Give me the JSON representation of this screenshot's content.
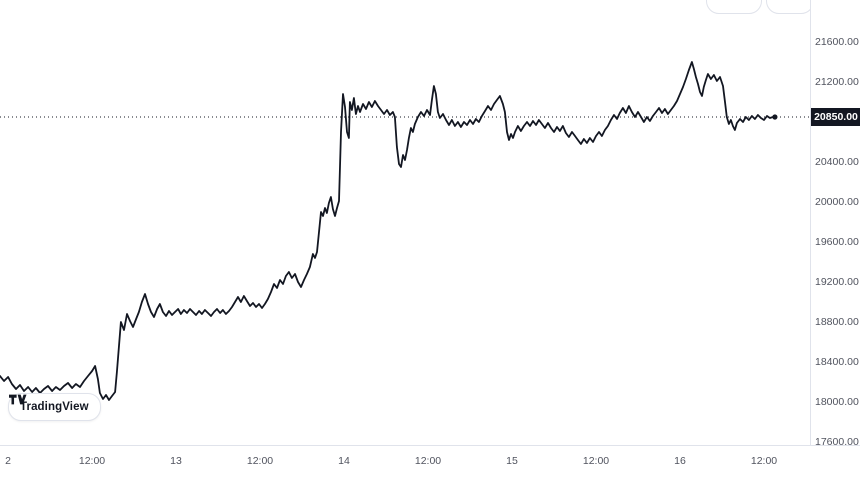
{
  "watermark": {
    "label": "TradingView"
  },
  "chart_data": {
    "type": "line",
    "title": "",
    "line_color": "#131722",
    "background": "#ffffff",
    "grid": "off",
    "legend": "none",
    "x_axis": {
      "xlim": [
        11.952,
        16.774
      ],
      "ticks": [
        {
          "t": 12.0,
          "label": "2"
        },
        {
          "t": 12.5,
          "label": "12:00"
        },
        {
          "t": 13.0,
          "label": "13"
        },
        {
          "t": 13.5,
          "label": "12:00"
        },
        {
          "t": 14.0,
          "label": "14"
        },
        {
          "t": 14.5,
          "label": "12:00"
        },
        {
          "t": 15.0,
          "label": "15"
        },
        {
          "t": 15.5,
          "label": "12:00"
        },
        {
          "t": 16.0,
          "label": "16"
        },
        {
          "t": 16.5,
          "label": "12:00"
        }
      ]
    },
    "y_axis": {
      "side": "right",
      "ylim": [
        17570,
        22020
      ],
      "ticks": [
        {
          "value": 21600,
          "label": "21600.00"
        },
        {
          "value": 21200,
          "label": "21200.00"
        },
        {
          "value": 20400,
          "label": "20400.00"
        },
        {
          "value": 20000,
          "label": "20000.00"
        },
        {
          "value": 19600,
          "label": "19600.00"
        },
        {
          "value": 19200,
          "label": "19200.00"
        },
        {
          "value": 18800,
          "label": "18800.00"
        },
        {
          "value": 18400,
          "label": "18400.00"
        },
        {
          "value": 18000,
          "label": "18000.00"
        },
        {
          "value": 17600,
          "label": "17600.00"
        }
      ]
    },
    "last_price": {
      "value": 20850,
      "label": "20850.00",
      "line_style": "dotted",
      "box_bg": "#131722",
      "box_fg": "#ffffff"
    },
    "series": [
      {
        "name": "price",
        "points": [
          [
            11.952,
            18260
          ],
          [
            11.976,
            18210
          ],
          [
            12.0,
            18250
          ],
          [
            12.023,
            18180
          ],
          [
            12.047,
            18130
          ],
          [
            12.071,
            18170
          ],
          [
            12.095,
            18110
          ],
          [
            12.119,
            18150
          ],
          [
            12.143,
            18100
          ],
          [
            12.166,
            18140
          ],
          [
            12.19,
            18090
          ],
          [
            12.214,
            18130
          ],
          [
            12.238,
            18160
          ],
          [
            12.262,
            18110
          ],
          [
            12.285,
            18150
          ],
          [
            12.309,
            18120
          ],
          [
            12.333,
            18160
          ],
          [
            12.357,
            18190
          ],
          [
            12.381,
            18140
          ],
          [
            12.404,
            18180
          ],
          [
            12.428,
            18150
          ],
          [
            12.452,
            18210
          ],
          [
            12.476,
            18260
          ],
          [
            12.5,
            18310
          ],
          [
            12.518,
            18360
          ],
          [
            12.535,
            18230
          ],
          [
            12.547,
            18090
          ],
          [
            12.565,
            18030
          ],
          [
            12.583,
            18070
          ],
          [
            12.601,
            18020
          ],
          [
            12.619,
            18060
          ],
          [
            12.637,
            18100
          ],
          [
            12.648,
            18300
          ],
          [
            12.66,
            18550
          ],
          [
            12.672,
            18800
          ],
          [
            12.69,
            18720
          ],
          [
            12.708,
            18880
          ],
          [
            12.726,
            18810
          ],
          [
            12.744,
            18750
          ],
          [
            12.762,
            18830
          ],
          [
            12.779,
            18900
          ],
          [
            12.797,
            19000
          ],
          [
            12.815,
            19080
          ],
          [
            12.833,
            18980
          ],
          [
            12.851,
            18900
          ],
          [
            12.869,
            18850
          ],
          [
            12.887,
            18930
          ],
          [
            12.904,
            18980
          ],
          [
            12.922,
            18900
          ],
          [
            12.94,
            18860
          ],
          [
            12.958,
            18910
          ],
          [
            12.976,
            18870
          ],
          [
            12.994,
            18900
          ],
          [
            13.012,
            18930
          ],
          [
            13.029,
            18880
          ],
          [
            13.047,
            18920
          ],
          [
            13.065,
            18890
          ],
          [
            13.083,
            18930
          ],
          [
            13.101,
            18900
          ],
          [
            13.119,
            18870
          ],
          [
            13.137,
            18910
          ],
          [
            13.154,
            18880
          ],
          [
            13.172,
            18920
          ],
          [
            13.19,
            18890
          ],
          [
            13.208,
            18860
          ],
          [
            13.226,
            18900
          ],
          [
            13.244,
            18930
          ],
          [
            13.262,
            18890
          ],
          [
            13.279,
            18920
          ],
          [
            13.297,
            18880
          ],
          [
            13.315,
            18910
          ],
          [
            13.333,
            18950
          ],
          [
            13.351,
            19000
          ],
          [
            13.369,
            19050
          ],
          [
            13.386,
            19000
          ],
          [
            13.404,
            19060
          ],
          [
            13.422,
            19010
          ],
          [
            13.44,
            18960
          ],
          [
            13.458,
            18990
          ],
          [
            13.476,
            18950
          ],
          [
            13.494,
            18980
          ],
          [
            13.512,
            18940
          ],
          [
            13.529,
            18980
          ],
          [
            13.547,
            19030
          ],
          [
            13.565,
            19100
          ],
          [
            13.583,
            19180
          ],
          [
            13.601,
            19140
          ],
          [
            13.619,
            19220
          ],
          [
            13.637,
            19180
          ],
          [
            13.654,
            19260
          ],
          [
            13.672,
            19300
          ],
          [
            13.69,
            19240
          ],
          [
            13.708,
            19280
          ],
          [
            13.726,
            19200
          ],
          [
            13.744,
            19150
          ],
          [
            13.762,
            19220
          ],
          [
            13.779,
            19280
          ],
          [
            13.797,
            19350
          ],
          [
            13.815,
            19480
          ],
          [
            13.827,
            19440
          ],
          [
            13.839,
            19500
          ],
          [
            13.851,
            19700
          ],
          [
            13.863,
            19900
          ],
          [
            13.875,
            19860
          ],
          [
            13.887,
            19940
          ],
          [
            13.898,
            19890
          ],
          [
            13.91,
            19990
          ],
          [
            13.922,
            20050
          ],
          [
            13.934,
            19930
          ],
          [
            13.946,
            19860
          ],
          [
            13.958,
            19940
          ],
          [
            13.97,
            20010
          ],
          [
            13.982,
            20700
          ],
          [
            13.994,
            21080
          ],
          [
            14.006,
            20950
          ],
          [
            14.018,
            20700
          ],
          [
            14.029,
            20640
          ],
          [
            14.035,
            21000
          ],
          [
            14.047,
            20920
          ],
          [
            14.059,
            21040
          ],
          [
            14.071,
            20880
          ],
          [
            14.083,
            20960
          ],
          [
            14.095,
            20900
          ],
          [
            14.113,
            20980
          ],
          [
            14.131,
            20930
          ],
          [
            14.148,
            21000
          ],
          [
            14.166,
            20950
          ],
          [
            14.184,
            21010
          ],
          [
            14.202,
            20960
          ],
          [
            14.22,
            20920
          ],
          [
            14.238,
            20880
          ],
          [
            14.256,
            20920
          ],
          [
            14.273,
            20870
          ],
          [
            14.291,
            20900
          ],
          [
            14.303,
            20850
          ],
          [
            14.315,
            20550
          ],
          [
            14.327,
            20380
          ],
          [
            14.339,
            20350
          ],
          [
            14.351,
            20470
          ],
          [
            14.363,
            20420
          ],
          [
            14.375,
            20520
          ],
          [
            14.386,
            20640
          ],
          [
            14.398,
            20740
          ],
          [
            14.41,
            20700
          ],
          [
            14.422,
            20780
          ],
          [
            14.44,
            20850
          ],
          [
            14.458,
            20900
          ],
          [
            14.476,
            20860
          ],
          [
            14.494,
            20920
          ],
          [
            14.512,
            20870
          ],
          [
            14.523,
            21020
          ],
          [
            14.535,
            21160
          ],
          [
            14.547,
            21080
          ],
          [
            14.559,
            20900
          ],
          [
            14.571,
            20840
          ],
          [
            14.589,
            20880
          ],
          [
            14.607,
            20820
          ],
          [
            14.625,
            20770
          ],
          [
            14.642,
            20820
          ],
          [
            14.66,
            20760
          ],
          [
            14.678,
            20800
          ],
          [
            14.696,
            20750
          ],
          [
            14.714,
            20800
          ],
          [
            14.732,
            20770
          ],
          [
            14.75,
            20820
          ],
          [
            14.768,
            20780
          ],
          [
            14.785,
            20830
          ],
          [
            14.803,
            20800
          ],
          [
            14.821,
            20860
          ],
          [
            14.839,
            20910
          ],
          [
            14.857,
            20960
          ],
          [
            14.875,
            20920
          ],
          [
            14.893,
            20980
          ],
          [
            14.91,
            21020
          ],
          [
            14.928,
            21060
          ],
          [
            14.946,
            20980
          ],
          [
            14.958,
            20900
          ],
          [
            14.97,
            20700
          ],
          [
            14.982,
            20620
          ],
          [
            14.994,
            20680
          ],
          [
            15.006,
            20640
          ],
          [
            15.018,
            20700
          ],
          [
            15.035,
            20760
          ],
          [
            15.053,
            20710
          ],
          [
            15.071,
            20760
          ],
          [
            15.089,
            20800
          ],
          [
            15.107,
            20760
          ],
          [
            15.125,
            20810
          ],
          [
            15.143,
            20770
          ],
          [
            15.16,
            20820
          ],
          [
            15.178,
            20780
          ],
          [
            15.196,
            20740
          ],
          [
            15.214,
            20790
          ],
          [
            15.232,
            20740
          ],
          [
            15.25,
            20700
          ],
          [
            15.268,
            20750
          ],
          [
            15.285,
            20710
          ],
          [
            15.303,
            20760
          ],
          [
            15.321,
            20690
          ],
          [
            15.339,
            20650
          ],
          [
            15.357,
            20700
          ],
          [
            15.375,
            20660
          ],
          [
            15.392,
            20620
          ],
          [
            15.41,
            20580
          ],
          [
            15.428,
            20630
          ],
          [
            15.446,
            20590
          ],
          [
            15.464,
            20640
          ],
          [
            15.482,
            20600
          ],
          [
            15.5,
            20660
          ],
          [
            15.518,
            20700
          ],
          [
            15.535,
            20660
          ],
          [
            15.553,
            20720
          ],
          [
            15.571,
            20760
          ],
          [
            15.589,
            20820
          ],
          [
            15.607,
            20870
          ],
          [
            15.625,
            20830
          ],
          [
            15.642,
            20890
          ],
          [
            15.66,
            20940
          ],
          [
            15.678,
            20890
          ],
          [
            15.696,
            20960
          ],
          [
            15.714,
            20900
          ],
          [
            15.732,
            20850
          ],
          [
            15.75,
            20900
          ],
          [
            15.768,
            20850
          ],
          [
            15.785,
            20800
          ],
          [
            15.803,
            20850
          ],
          [
            15.821,
            20810
          ],
          [
            15.839,
            20860
          ],
          [
            15.857,
            20900
          ],
          [
            15.875,
            20940
          ],
          [
            15.893,
            20890
          ],
          [
            15.91,
            20930
          ],
          [
            15.928,
            20880
          ],
          [
            15.946,
            20920
          ],
          [
            15.964,
            20960
          ],
          [
            15.982,
            21010
          ],
          [
            16.0,
            21080
          ],
          [
            16.018,
            21150
          ],
          [
            16.035,
            21230
          ],
          [
            16.053,
            21320
          ],
          [
            16.071,
            21400
          ],
          [
            16.083,
            21330
          ],
          [
            16.095,
            21250
          ],
          [
            16.107,
            21180
          ],
          [
            16.119,
            21100
          ],
          [
            16.131,
            21060
          ],
          [
            16.142,
            21150
          ],
          [
            16.154,
            21220
          ],
          [
            16.166,
            21280
          ],
          [
            16.184,
            21230
          ],
          [
            16.202,
            21270
          ],
          [
            16.22,
            21210
          ],
          [
            16.238,
            21250
          ],
          [
            16.256,
            21160
          ],
          [
            16.268,
            21000
          ],
          [
            16.279,
            20850
          ],
          [
            16.291,
            20780
          ],
          [
            16.303,
            20820
          ],
          [
            16.315,
            20760
          ],
          [
            16.327,
            20720
          ],
          [
            16.339,
            20790
          ],
          [
            16.357,
            20830
          ],
          [
            16.375,
            20800
          ],
          [
            16.392,
            20850
          ],
          [
            16.41,
            20820
          ],
          [
            16.428,
            20860
          ],
          [
            16.446,
            20830
          ],
          [
            16.464,
            20870
          ],
          [
            16.482,
            20840
          ],
          [
            16.5,
            20820
          ],
          [
            16.518,
            20860
          ],
          [
            16.535,
            20840
          ],
          [
            16.553,
            20850
          ],
          [
            16.565,
            20850
          ]
        ]
      }
    ]
  }
}
